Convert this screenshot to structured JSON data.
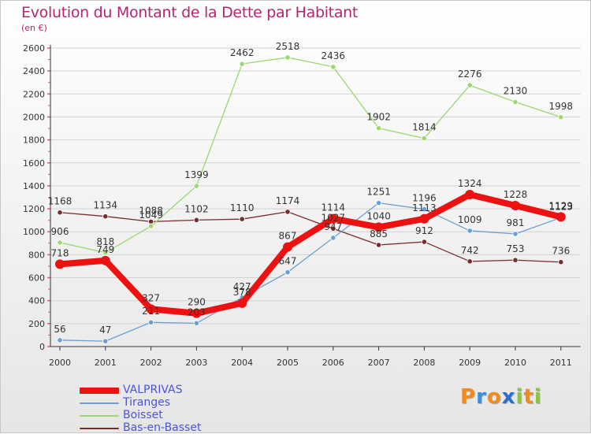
{
  "title": "Evolution du Montant de la Dette par Habitant",
  "unit": "(en €)",
  "brand": {
    "letters": [
      {
        "ch": "P",
        "color": "#f28a1c"
      },
      {
        "ch": "r",
        "color": "#3a8fd8"
      },
      {
        "ch": "o",
        "color": "#f28a1c"
      },
      {
        "ch": "x",
        "color": "#2a6fd0"
      },
      {
        "ch": "i",
        "color": "#8bc43f"
      },
      {
        "ch": "t",
        "color": "#f28a1c"
      },
      {
        "ch": "i",
        "color": "#8bc43f"
      }
    ]
  },
  "chart_data": {
    "type": "line",
    "title": "Evolution du Montant de la Dette par Habitant",
    "ylabel": "(en €)",
    "xlabel": "",
    "ylim": [
      0,
      2600
    ],
    "y_ticks": [
      0,
      200,
      400,
      600,
      800,
      1000,
      1200,
      1400,
      1600,
      1800,
      2000,
      2200,
      2400,
      2600
    ],
    "categories": [
      "2000",
      "2001",
      "2002",
      "2003",
      "2004",
      "2005",
      "2006",
      "2007",
      "2008",
      "2009",
      "2010",
      "2011"
    ],
    "grid": "horizontal",
    "legend": "bottom-left",
    "series": [
      {
        "name": "VALPRIVAS",
        "color": "#ee1111",
        "values": [
          718,
          749,
          327,
          290,
          378,
          867,
          1114,
          1040,
          1113,
          1324,
          1228,
          1129
        ],
        "labels": [
          "718",
          "749",
          "327",
          "290",
          "378",
          "867",
          "1114",
          "1040",
          "1113",
          "1324",
          "1228",
          "1129"
        ]
      },
      {
        "name": "Tiranges",
        "color": "#6b9fd4",
        "values": [
          56,
          47,
          211,
          203,
          427,
          647,
          947,
          1251,
          1196,
          1009,
          981,
          1123
        ],
        "labels": [
          "56",
          "47",
          "211",
          "203",
          "427",
          "647",
          "947",
          "1251",
          "1196",
          "1009",
          "981",
          "1123"
        ]
      },
      {
        "name": "Boisset",
        "color": "#9bd870",
        "values": [
          906,
          818,
          1049,
          1399,
          2462,
          2518,
          2436,
          1902,
          1814,
          2276,
          2130,
          1998
        ],
        "labels": [
          "906",
          "818",
          "1049",
          "1399",
          "2462",
          "2518",
          "2436",
          "1902",
          "1814",
          "2276",
          "2130",
          "1998"
        ]
      },
      {
        "name": "Bas-en-Basset",
        "color": "#7a2b2b",
        "values": [
          1168,
          1134,
          1088,
          1102,
          1110,
          1174,
          1027,
          885,
          912,
          742,
          753,
          736
        ],
        "labels": [
          "1168",
          "1134",
          "1088",
          "1102",
          "1110",
          "1174",
          "1027",
          "885",
          "912",
          "742",
          "753",
          "736"
        ]
      }
    ]
  }
}
